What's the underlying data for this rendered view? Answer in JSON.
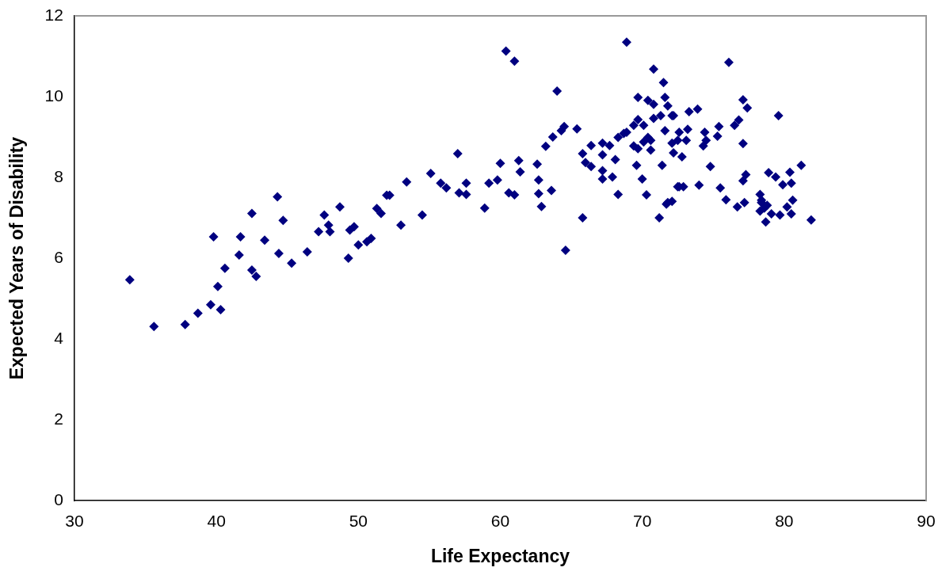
{
  "chart_data": {
    "type": "scatter",
    "xlabel": "Life Expectancy",
    "ylabel": "Expected Years of Disability",
    "marker": "diamond",
    "grid": false,
    "legend": false,
    "xlim": [
      30,
      90
    ],
    "xticks": [
      30,
      40,
      50,
      60,
      70,
      80,
      90
    ],
    "ylim": [
      0,
      12
    ],
    "yticks": [
      0,
      2,
      4,
      6,
      8,
      10,
      12
    ],
    "series": [
      {
        "color": "#000080",
        "x": [
          33.9,
          35.6,
          37.8,
          38.7,
          39.6,
          39.8,
          40.1,
          40.3,
          40.6,
          41.6,
          41.7,
          42.5,
          42.5,
          42.8,
          43.4,
          44.3,
          44.4,
          44.7,
          45.3,
          46.4,
          47.2,
          47.6,
          47.9,
          48.0,
          48.7,
          49.3,
          49.4,
          49.7,
          50.0,
          50.6,
          50.9,
          51.3,
          51.6,
          52.0,
          52.2,
          53.0,
          53.4,
          54.5,
          55.1,
          55.8,
          56.2,
          57.0,
          57.1,
          57.6,
          57.6,
          58.9,
          59.2,
          59.8,
          60.0,
          60.4,
          61.0,
          60.6,
          61.0,
          61.3,
          61.4,
          62.6,
          62.7,
          62.7,
          62.9,
          63.6,
          63.2,
          63.7,
          64.3,
          64.5,
          64.0,
          65.4,
          64.6,
          65.8,
          65.8,
          66.0,
          66.4,
          66.4,
          67.2,
          67.2,
          67.7,
          67.2,
          67.2,
          67.9,
          68.1,
          68.3,
          68.3,
          68.7,
          68.9,
          68.9,
          69.4,
          69.7,
          70.1,
          69.4,
          69.7,
          70.1,
          70.4,
          70.6,
          69.6,
          70.0,
          70.3,
          69.7,
          70.4,
          70.8,
          70.8,
          71.3,
          71.6,
          71.8,
          72.1,
          71.6,
          71.4,
          71.2,
          71.8,
          72.1,
          72.5,
          70.8,
          71.5,
          76.1,
          73.3,
          73.9,
          77.1,
          77.4,
          79.6,
          72.2,
          72.6,
          73.2,
          73.1,
          72.5,
          74.4,
          74.5,
          74.3,
          75.4,
          75.3,
          76.5,
          76.8,
          77.1,
          70.6,
          72.1,
          72.2,
          72.8,
          74.8,
          81.2,
          72.6,
          72.9,
          74.0,
          75.5,
          75.9,
          77.3,
          77.1,
          78.9,
          79.4,
          80.4,
          79.9,
          80.5,
          71.7,
          76.7,
          77.2,
          78.3,
          78.4,
          78.3,
          78.8,
          78.7,
          79.1,
          79.7,
          80.2,
          80.6,
          80.5,
          81.9,
          78.4,
          78.6
        ],
        "values": [
          5.47,
          4.31,
          4.36,
          4.64,
          4.85,
          6.53,
          5.3,
          4.73,
          5.75,
          6.08,
          6.53,
          7.11,
          5.71,
          5.55,
          6.45,
          7.52,
          6.12,
          6.94,
          5.88,
          6.16,
          6.66,
          7.07,
          6.82,
          6.66,
          7.27,
          6.0,
          6.7,
          6.78,
          6.33,
          6.41,
          6.49,
          7.23,
          7.11,
          7.56,
          7.56,
          6.82,
          7.89,
          7.07,
          8.1,
          7.86,
          7.74,
          8.59,
          7.62,
          7.86,
          7.58,
          7.24,
          7.86,
          7.94,
          8.35,
          11.13,
          10.88,
          7.62,
          7.57,
          8.42,
          8.14,
          8.33,
          7.94,
          7.6,
          7.28,
          7.68,
          8.77,
          9.0,
          9.16,
          9.26,
          10.14,
          9.2,
          6.2,
          7.0,
          8.59,
          8.37,
          8.27,
          8.79,
          8.85,
          8.56,
          8.79,
          8.17,
          7.96,
          8.01,
          8.44,
          7.58,
          8.99,
          9.09,
          9.12,
          11.35,
          9.29,
          9.43,
          9.29,
          8.78,
          8.71,
          8.88,
          8.99,
          8.68,
          8.3,
          7.96,
          7.57,
          9.98,
          9.91,
          9.81,
          9.46,
          9.53,
          9.98,
          9.77,
          9.53,
          9.16,
          8.3,
          7.0,
          7.38,
          7.41,
          7.77,
          10.68,
          10.35,
          10.85,
          9.63,
          9.69,
          9.92,
          9.72,
          9.53,
          9.53,
          9.12,
          9.19,
          8.92,
          8.92,
          9.12,
          8.92,
          8.78,
          9.26,
          9.02,
          9.29,
          9.42,
          8.84,
          8.92,
          8.85,
          8.61,
          8.51,
          8.27,
          8.3,
          7.77,
          7.77,
          7.81,
          7.74,
          7.45,
          8.07,
          7.92,
          8.12,
          8.01,
          8.13,
          7.82,
          7.86,
          7.34,
          7.27,
          7.38,
          7.58,
          7.38,
          7.17,
          7.31,
          6.9,
          7.1,
          7.07,
          7.27,
          7.44,
          7.1,
          6.95,
          7.44,
          7.24
        ]
      }
    ]
  }
}
